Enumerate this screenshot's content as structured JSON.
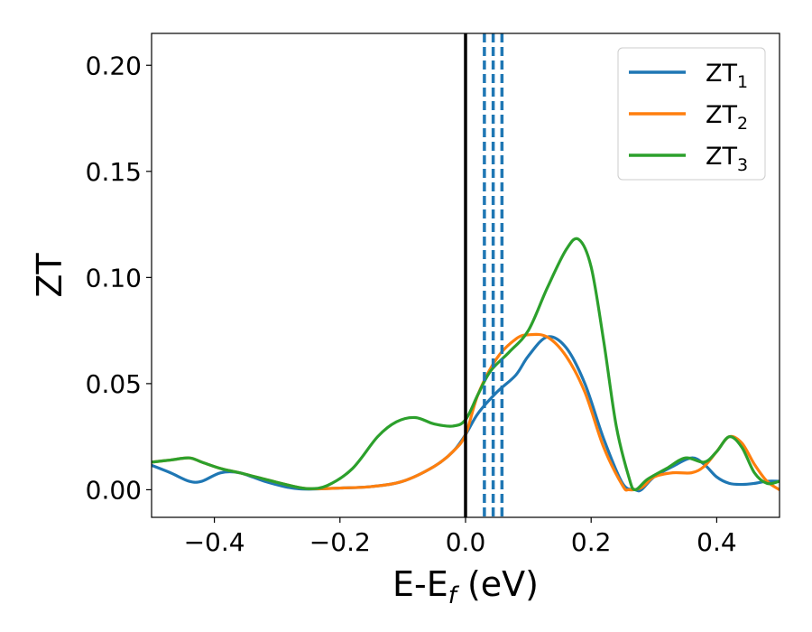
{
  "chart_data": {
    "type": "line",
    "title": "",
    "xlabel": "E-E",
    "xlabel_sub": "f",
    "xlabel_unit": " (eV)",
    "ylabel": "ZT",
    "xlim": [
      -0.5,
      0.5
    ],
    "ylim": [
      -0.013,
      0.215
    ],
    "xticks": [
      -0.4,
      -0.2,
      0.0,
      0.2,
      0.4
    ],
    "xtick_labels": [
      "−0.4",
      "−0.2",
      "0.0",
      "0.2",
      "0.4"
    ],
    "yticks": [
      0.0,
      0.05,
      0.1,
      0.15,
      0.2
    ],
    "ytick_labels": [
      "0.00",
      "0.05",
      "0.10",
      "0.15",
      "0.20"
    ],
    "grid": false,
    "legend_position": "top-right",
    "series": [
      {
        "name": "ZT",
        "name_sub": "1",
        "color": "#1f77b4",
        "x": [
          -0.5,
          -0.47,
          -0.44,
          -0.42,
          -0.39,
          -0.36,
          -0.32,
          -0.28,
          -0.25,
          -0.2,
          -0.15,
          -0.1,
          -0.05,
          -0.02,
          0.0,
          0.02,
          0.05,
          0.08,
          0.1,
          0.13,
          0.16,
          0.19,
          0.22,
          0.25,
          0.27,
          0.28,
          0.3,
          0.33,
          0.36,
          0.38,
          0.4,
          0.42,
          0.44,
          0.46,
          0.48,
          0.5
        ],
        "y": [
          0.0115,
          0.008,
          0.004,
          0.004,
          0.008,
          0.008,
          0.004,
          0.001,
          0.0003,
          0.0008,
          0.0015,
          0.004,
          0.011,
          0.018,
          0.026,
          0.036,
          0.046,
          0.054,
          0.063,
          0.072,
          0.067,
          0.05,
          0.024,
          0.003,
          0.0,
          0.0,
          0.006,
          0.011,
          0.015,
          0.012,
          0.006,
          0.003,
          0.0025,
          0.003,
          0.004,
          0.004
        ]
      },
      {
        "name": "ZT",
        "name_sub": "2",
        "color": "#ff7f0e",
        "x": [
          -0.5,
          -0.47,
          -0.44,
          -0.42,
          -0.39,
          -0.36,
          -0.32,
          -0.28,
          -0.25,
          -0.2,
          -0.15,
          -0.1,
          -0.05,
          -0.02,
          0.0,
          0.02,
          0.05,
          0.08,
          0.1,
          0.13,
          0.16,
          0.19,
          0.22,
          0.25,
          0.26,
          0.28,
          0.3,
          0.33,
          0.36,
          0.38,
          0.4,
          0.42,
          0.44,
          0.46,
          0.48,
          0.5
        ],
        "y": [
          0.013,
          0.014,
          0.015,
          0.013,
          0.01,
          0.008,
          0.005,
          0.002,
          0.0005,
          0.0008,
          0.0015,
          0.004,
          0.011,
          0.018,
          0.026,
          0.045,
          0.062,
          0.071,
          0.073,
          0.072,
          0.063,
          0.046,
          0.02,
          0.002,
          0.0,
          0.001,
          0.006,
          0.008,
          0.008,
          0.011,
          0.018,
          0.025,
          0.022,
          0.012,
          0.004,
          0.0
        ]
      },
      {
        "name": "ZT",
        "name_sub": "3",
        "color": "#2ca02c",
        "x": [
          -0.5,
          -0.47,
          -0.44,
          -0.42,
          -0.39,
          -0.36,
          -0.32,
          -0.28,
          -0.25,
          -0.22,
          -0.18,
          -0.14,
          -0.11,
          -0.08,
          -0.05,
          -0.02,
          0.0,
          0.02,
          0.04,
          0.07,
          0.1,
          0.13,
          0.16,
          0.18,
          0.2,
          0.22,
          0.24,
          0.26,
          0.27,
          0.29,
          0.32,
          0.35,
          0.38,
          0.4,
          0.42,
          0.44,
          0.46,
          0.48,
          0.5
        ],
        "y": [
          0.013,
          0.014,
          0.015,
          0.013,
          0.01,
          0.008,
          0.005,
          0.002,
          0.0005,
          0.002,
          0.01,
          0.025,
          0.032,
          0.034,
          0.031,
          0.03,
          0.033,
          0.045,
          0.056,
          0.065,
          0.075,
          0.095,
          0.113,
          0.118,
          0.105,
          0.07,
          0.03,
          0.006,
          0.0,
          0.005,
          0.01,
          0.015,
          0.013,
          0.018,
          0.025,
          0.02,
          0.008,
          0.003,
          0.004
        ]
      }
    ],
    "vlines": [
      {
        "x": 0.0,
        "color": "#000000",
        "style": "solid"
      },
      {
        "x": 0.03,
        "color": "#1f77b4",
        "style": "dashed"
      },
      {
        "x": 0.044,
        "color": "#1f77b4",
        "style": "dashed"
      },
      {
        "x": 0.058,
        "color": "#1f77b4",
        "style": "dashed"
      }
    ]
  }
}
